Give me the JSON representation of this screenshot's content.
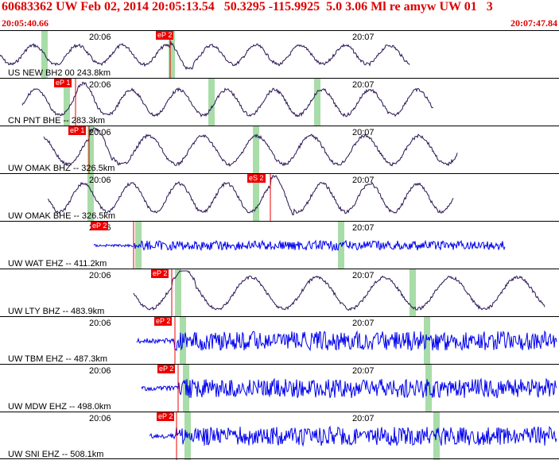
{
  "header": {
    "title": "60683362 UW Feb 02, 2014 20:05:13.54   50.3295 -115.9925  5.0 3.06 Ml re amyw UW 01   3",
    "start_time": "20:05:40.66",
    "end_time": "20:07:47.84"
  },
  "colors": {
    "header_text": "#dd0000",
    "trace_broadband": "#2a1452",
    "trace_short_period": "#0000ee",
    "pick_marker": "#ee0000",
    "phase_band": "#a8dca8"
  },
  "tick_labels": [
    "20:06",
    "20:07"
  ],
  "panels": [
    {
      "station": "US NEW BH2 00 243.8km",
      "pick": "eP 2",
      "trace": "broadband"
    },
    {
      "station": "CN PNT BHE -- 283.3km",
      "pick": "eP 1",
      "trace": "broadband"
    },
    {
      "station": "UW OMAK BHZ -- 326.5km",
      "pick": "eP 1",
      "trace": "broadband"
    },
    {
      "station": "UW OMAK BHE -- 326.5km",
      "pick": "eS 2",
      "trace": "broadband"
    },
    {
      "station": "UW WAT EHZ -- 411.2km",
      "pick": "eP 2",
      "trace": "short_period"
    },
    {
      "station": "UW LTY BHZ -- 483.9km",
      "pick": "eP 2",
      "trace": "broadband"
    },
    {
      "station": "UW TBM EHZ -- 487.3km",
      "pick": "eP 2",
      "trace": "short_period"
    },
    {
      "station": "UW MDW EHZ -- 498.0km",
      "pick": "eP 2",
      "trace": "short_period"
    },
    {
      "station": "UW SNI EHZ -- 508.1km",
      "pick": "eP 2",
      "trace": "short_period"
    }
  ]
}
